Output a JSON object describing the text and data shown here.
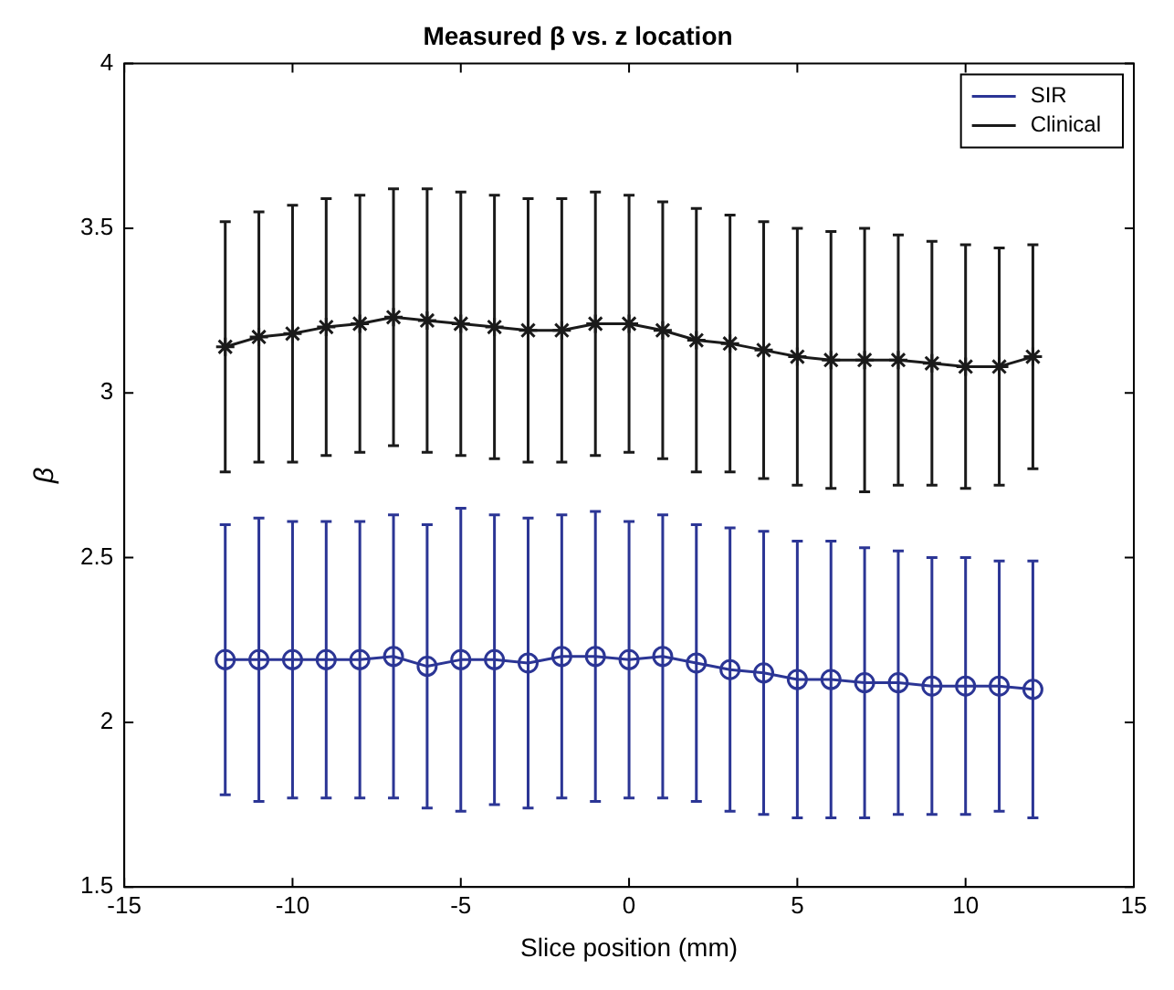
{
  "chart_data": {
    "type": "line",
    "title": "Measured β vs. z location",
    "xlabel": "Slice position (mm)",
    "ylabel": "β",
    "x": [
      -12,
      -11,
      -10,
      -9,
      -8,
      -7,
      -6,
      -5,
      -4,
      -3,
      -2,
      -1,
      0,
      1,
      2,
      3,
      4,
      5,
      6,
      7,
      8,
      9,
      10,
      11,
      12
    ],
    "series": [
      {
        "name": "SIR",
        "color": "#2b3595",
        "marker": "circle",
        "values": [
          2.19,
          2.19,
          2.19,
          2.19,
          2.19,
          2.2,
          2.17,
          2.19,
          2.19,
          2.18,
          2.2,
          2.2,
          2.19,
          2.2,
          2.18,
          2.16,
          2.15,
          2.13,
          2.13,
          2.12,
          2.12,
          2.11,
          2.11,
          2.11,
          2.1
        ],
        "errors": [
          0.41,
          0.43,
          0.42,
          0.42,
          0.42,
          0.43,
          0.43,
          0.46,
          0.44,
          0.44,
          0.43,
          0.44,
          0.42,
          0.43,
          0.42,
          0.43,
          0.43,
          0.42,
          0.42,
          0.41,
          0.4,
          0.39,
          0.39,
          0.38,
          0.39
        ]
      },
      {
        "name": "Clinical",
        "color": "#1a1a1a",
        "marker": "cross",
        "values": [
          3.14,
          3.17,
          3.18,
          3.2,
          3.21,
          3.23,
          3.22,
          3.21,
          3.2,
          3.19,
          3.19,
          3.21,
          3.21,
          3.19,
          3.16,
          3.15,
          3.13,
          3.11,
          3.1,
          3.1,
          3.1,
          3.09,
          3.08,
          3.08,
          3.11
        ],
        "errors": [
          0.38,
          0.38,
          0.39,
          0.39,
          0.39,
          0.39,
          0.4,
          0.4,
          0.4,
          0.4,
          0.4,
          0.4,
          0.39,
          0.39,
          0.4,
          0.39,
          0.39,
          0.39,
          0.39,
          0.4,
          0.38,
          0.37,
          0.37,
          0.36,
          0.34
        ]
      }
    ],
    "xlim": [
      -15,
      15
    ],
    "xticks": [
      -15,
      -10,
      -5,
      0,
      5,
      10,
      15
    ],
    "ylim": [
      1.5,
      4
    ],
    "yticks": [
      1.5,
      2,
      2.5,
      3,
      3.5,
      4
    ],
    "grid": false,
    "legend": "top right",
    "line_style": "solid"
  }
}
